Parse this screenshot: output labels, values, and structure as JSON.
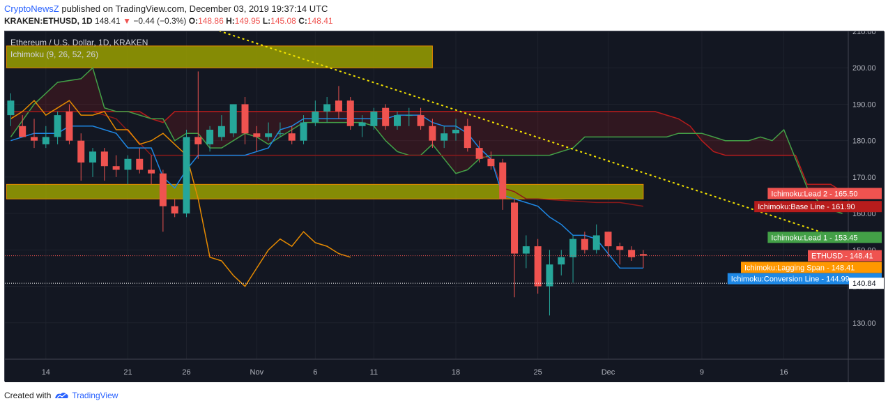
{
  "header": {
    "brand": "CryptoNewsZ",
    "rest": " published on TradingView.com, December 03, 2019 19:37:14 UTC"
  },
  "ticker": {
    "symbol": "KRAKEN:ETHUSD, 1D",
    "price": "148.41",
    "arrow": "▼",
    "change": "−0.44 (−0.3%)",
    "o_label": "O:",
    "o": "148.86",
    "h_label": "H:",
    "h": "149.95",
    "l_label": "L:",
    "l": "145.08",
    "c_label": "C:",
    "c": "148.41"
  },
  "chart_title": "Ethereum / U.S. Dollar, 1D, KRAKEN",
  "indicator_label": "Ichimoku (9, 26, 52, 26)",
  "footer": {
    "created": "Created with",
    "brand": "TradingView"
  },
  "colors": {
    "bg": "#131722",
    "up": "#26a69a",
    "down": "#ef5350",
    "lead1": "#43a047",
    "lead2": "#b71c1c",
    "base": "#8b1a1a",
    "conversion": "#1e88e5",
    "lagging": "#e68a00",
    "trend": "#f5e400",
    "zone": "#9aa000"
  },
  "chart_data": {
    "type": "candlestick",
    "title": "Ethereum / U.S. Dollar, 1D, KRAKEN",
    "ylim": [
      120,
      210
    ],
    "y_ticks": [
      130,
      140,
      150,
      160,
      170,
      180,
      190,
      200,
      210
    ],
    "y_tick_labels": [
      "130.00",
      "140.00",
      "150.00",
      "160.00",
      "170.00",
      "180.00",
      "190.00",
      "200.00",
      "210.00"
    ],
    "x_ticks": [
      "14",
      "21",
      "26",
      "Nov",
      "6",
      "11",
      "18",
      "25",
      "Dec",
      "9",
      "16"
    ],
    "x_tick_days": [
      3,
      10,
      15,
      21,
      26,
      31,
      38,
      45,
      51,
      59,
      66
    ],
    "x_range": [
      -0.5,
      71.5
    ],
    "candles": [
      {
        "d": 0,
        "o": 187,
        "h": 193,
        "l": 184,
        "c": 191
      },
      {
        "d": 1,
        "o": 184,
        "h": 187,
        "l": 181,
        "c": 181
      },
      {
        "d": 2,
        "o": 181,
        "h": 186,
        "l": 178,
        "c": 180
      },
      {
        "d": 3,
        "o": 179,
        "h": 184,
        "l": 178,
        "c": 181
      },
      {
        "d": 4,
        "o": 181,
        "h": 188,
        "l": 179,
        "c": 187
      },
      {
        "d": 5,
        "o": 188,
        "h": 190,
        "l": 179,
        "c": 180
      },
      {
        "d": 6,
        "o": 180,
        "h": 182,
        "l": 169,
        "c": 174
      },
      {
        "d": 7,
        "o": 174,
        "h": 178,
        "l": 170,
        "c": 177
      },
      {
        "d": 8,
        "o": 177,
        "h": 178,
        "l": 169,
        "c": 173
      },
      {
        "d": 9,
        "o": 173,
        "h": 176,
        "l": 170,
        "c": 172
      },
      {
        "d": 10,
        "o": 172,
        "h": 176,
        "l": 168,
        "c": 175
      },
      {
        "d": 11,
        "o": 175,
        "h": 178,
        "l": 171,
        "c": 172
      },
      {
        "d": 12,
        "o": 172,
        "h": 176,
        "l": 168,
        "c": 171
      },
      {
        "d": 13,
        "o": 171,
        "h": 172,
        "l": 155,
        "c": 162
      },
      {
        "d": 14,
        "o": 162,
        "h": 164,
        "l": 159,
        "c": 160
      },
      {
        "d": 15,
        "o": 160,
        "h": 183,
        "l": 159,
        "c": 181
      },
      {
        "d": 16,
        "o": 181,
        "h": 199,
        "l": 175,
        "c": 179
      },
      {
        "d": 17,
        "o": 179,
        "h": 184,
        "l": 177,
        "c": 183
      },
      {
        "d": 18,
        "o": 181,
        "h": 187,
        "l": 180,
        "c": 184
      },
      {
        "d": 19,
        "o": 182,
        "h": 190,
        "l": 181,
        "c": 190
      },
      {
        "d": 20,
        "o": 190,
        "h": 192,
        "l": 179,
        "c": 182
      },
      {
        "d": 21,
        "o": 182,
        "h": 184,
        "l": 177,
        "c": 181
      },
      {
        "d": 22,
        "o": 181,
        "h": 185,
        "l": 180,
        "c": 182
      },
      {
        "d": 23,
        "o": 182,
        "h": 185,
        "l": 181,
        "c": 182
      },
      {
        "d": 24,
        "o": 182,
        "h": 184,
        "l": 179,
        "c": 180
      },
      {
        "d": 25,
        "o": 180,
        "h": 187,
        "l": 179,
        "c": 185
      },
      {
        "d": 26,
        "o": 185,
        "h": 191,
        "l": 184,
        "c": 188
      },
      {
        "d": 27,
        "o": 188,
        "h": 192,
        "l": 185,
        "c": 190
      },
      {
        "d": 28,
        "o": 191,
        "h": 195,
        "l": 186,
        "c": 188
      },
      {
        "d": 29,
        "o": 191,
        "h": 192,
        "l": 183,
        "c": 184
      },
      {
        "d": 30,
        "o": 184,
        "h": 187,
        "l": 181,
        "c": 185
      },
      {
        "d": 31,
        "o": 184,
        "h": 189,
        "l": 183,
        "c": 188
      },
      {
        "d": 32,
        "o": 189,
        "h": 190,
        "l": 183,
        "c": 184
      },
      {
        "d": 33,
        "o": 184,
        "h": 188,
        "l": 183,
        "c": 187
      },
      {
        "d": 34,
        "o": 187,
        "h": 189,
        "l": 184,
        "c": 187
      },
      {
        "d": 35,
        "o": 187,
        "h": 189,
        "l": 183,
        "c": 184
      },
      {
        "d": 36,
        "o": 184,
        "h": 186,
        "l": 178,
        "c": 180
      },
      {
        "d": 37,
        "o": 180,
        "h": 184,
        "l": 178,
        "c": 182
      },
      {
        "d": 38,
        "o": 182,
        "h": 186,
        "l": 180,
        "c": 183
      },
      {
        "d": 39,
        "o": 184,
        "h": 186,
        "l": 177,
        "c": 178
      },
      {
        "d": 40,
        "o": 178,
        "h": 180,
        "l": 174,
        "c": 175
      },
      {
        "d": 41,
        "o": 175,
        "h": 177,
        "l": 172,
        "c": 173
      },
      {
        "d": 42,
        "o": 174,
        "h": 175,
        "l": 161,
        "c": 164
      },
      {
        "d": 43,
        "o": 163,
        "h": 164,
        "l": 137,
        "c": 149
      },
      {
        "d": 44,
        "o": 149,
        "h": 154,
        "l": 145,
        "c": 151
      },
      {
        "d": 45,
        "o": 151,
        "h": 153,
        "l": 138,
        "c": 140
      },
      {
        "d": 46,
        "o": 140,
        "h": 150,
        "l": 132,
        "c": 146
      },
      {
        "d": 47,
        "o": 146,
        "h": 150,
        "l": 143,
        "c": 148
      },
      {
        "d": 48,
        "o": 148,
        "h": 154,
        "l": 141,
        "c": 153
      },
      {
        "d": 49,
        "o": 153,
        "h": 155,
        "l": 149,
        "c": 150
      },
      {
        "d": 50,
        "o": 150,
        "h": 157,
        "l": 149,
        "c": 154
      },
      {
        "d": 51,
        "o": 155,
        "h": 155,
        "l": 148,
        "c": 151
      },
      {
        "d": 52,
        "o": 151,
        "h": 152,
        "l": 146,
        "c": 150
      },
      {
        "d": 53,
        "o": 150,
        "h": 151,
        "l": 147,
        "c": 148
      },
      {
        "d": 54,
        "o": 148.86,
        "h": 149.95,
        "l": 145.08,
        "c": 148.41
      }
    ],
    "conversion_line": [
      [
        0,
        180
      ],
      [
        2,
        182
      ],
      [
        4,
        182
      ],
      [
        5,
        184
      ],
      [
        7,
        184
      ],
      [
        9,
        182
      ],
      [
        10,
        178
      ],
      [
        12,
        178
      ],
      [
        13,
        170
      ],
      [
        14,
        167
      ],
      [
        15,
        172
      ],
      [
        16,
        176
      ],
      [
        20,
        176
      ],
      [
        21,
        177
      ],
      [
        22,
        178
      ],
      [
        23,
        183
      ],
      [
        24,
        184
      ],
      [
        25,
        186
      ],
      [
        29,
        186
      ],
      [
        30,
        186
      ],
      [
        32,
        186
      ],
      [
        33,
        187
      ],
      [
        35,
        187
      ],
      [
        36,
        185
      ],
      [
        37,
        184
      ],
      [
        38,
        184
      ],
      [
        39,
        182
      ],
      [
        40,
        178
      ],
      [
        41,
        175
      ],
      [
        42,
        165
      ],
      [
        43,
        164
      ],
      [
        44,
        163
      ],
      [
        45,
        162
      ],
      [
        46,
        159
      ],
      [
        47,
        157
      ],
      [
        48,
        154
      ],
      [
        49,
        154
      ],
      [
        50,
        153
      ],
      [
        51,
        149
      ],
      [
        52,
        145
      ],
      [
        53,
        145
      ],
      [
        54,
        145
      ]
    ],
    "base_line": [
      [
        0,
        188
      ],
      [
        2,
        188
      ],
      [
        3,
        188
      ],
      [
        5,
        188
      ],
      [
        7,
        188
      ],
      [
        9,
        186
      ],
      [
        12,
        176
      ],
      [
        14,
        176
      ],
      [
        20,
        176
      ],
      [
        21,
        176
      ],
      [
        28,
        176
      ],
      [
        29,
        176
      ],
      [
        30,
        176
      ],
      [
        34,
        176
      ],
      [
        35,
        176
      ],
      [
        36,
        176
      ],
      [
        38,
        176
      ],
      [
        39,
        176
      ],
      [
        40,
        176
      ],
      [
        41,
        175
      ],
      [
        42,
        167
      ],
      [
        43,
        166
      ],
      [
        44,
        164
      ],
      [
        45,
        164
      ],
      [
        50,
        163
      ],
      [
        52,
        163
      ],
      [
        54,
        162
      ]
    ],
    "lead1": [
      [
        0,
        181
      ],
      [
        2,
        190
      ],
      [
        4,
        196
      ],
      [
        6,
        197
      ],
      [
        7,
        200
      ],
      [
        8,
        189
      ],
      [
        9,
        188
      ],
      [
        10,
        188
      ],
      [
        11,
        187
      ],
      [
        12,
        186
      ],
      [
        13,
        186
      ],
      [
        14,
        180
      ],
      [
        15,
        182
      ],
      [
        16,
        182
      ],
      [
        17,
        178
      ],
      [
        18,
        178
      ],
      [
        19,
        180
      ],
      [
        20,
        182
      ],
      [
        21,
        181
      ],
      [
        22,
        179
      ],
      [
        23,
        181
      ],
      [
        24,
        183
      ],
      [
        25,
        185
      ],
      [
        26,
        185
      ],
      [
        27,
        185
      ],
      [
        28,
        185
      ],
      [
        29,
        185
      ],
      [
        30,
        185
      ],
      [
        31,
        184
      ],
      [
        32,
        180
      ],
      [
        33,
        177
      ],
      [
        34,
        176
      ],
      [
        35,
        176
      ],
      [
        36,
        179
      ],
      [
        37,
        175
      ],
      [
        38,
        171
      ],
      [
        39,
        172
      ],
      [
        40,
        175
      ],
      [
        41,
        176
      ],
      [
        42,
        176
      ],
      [
        43,
        176
      ],
      [
        44,
        176
      ],
      [
        45,
        176
      ],
      [
        46,
        176
      ],
      [
        47,
        177
      ],
      [
        48,
        178
      ],
      [
        49,
        181
      ],
      [
        50,
        181
      ],
      [
        51,
        181
      ],
      [
        52,
        181
      ],
      [
        53,
        181
      ],
      [
        54,
        181
      ],
      [
        55,
        181
      ],
      [
        56,
        181
      ],
      [
        57,
        182
      ],
      [
        58,
        182
      ],
      [
        59,
        182
      ],
      [
        60,
        181
      ],
      [
        61,
        180
      ],
      [
        62,
        180
      ],
      [
        63,
        180
      ],
      [
        64,
        181
      ],
      [
        65,
        180
      ],
      [
        66,
        183
      ],
      [
        67,
        175
      ],
      [
        68,
        167
      ],
      [
        69,
        163
      ],
      [
        70,
        161
      ],
      [
        71,
        160
      ]
    ],
    "lead2": [
      [
        0,
        188
      ],
      [
        2,
        188
      ],
      [
        4,
        188
      ],
      [
        6,
        188
      ],
      [
        8,
        188
      ],
      [
        9,
        188
      ],
      [
        10,
        188
      ],
      [
        11,
        188
      ],
      [
        12,
        186
      ],
      [
        13,
        185
      ],
      [
        14,
        188
      ],
      [
        15,
        188
      ],
      [
        20,
        188
      ],
      [
        25,
        188
      ],
      [
        30,
        188
      ],
      [
        35,
        188
      ],
      [
        40,
        188
      ],
      [
        45,
        188
      ],
      [
        50,
        188
      ],
      [
        52,
        188
      ],
      [
        54,
        188
      ],
      [
        55,
        188
      ],
      [
        56,
        187
      ],
      [
        57,
        186
      ],
      [
        58,
        184
      ],
      [
        59,
        180
      ],
      [
        60,
        177
      ],
      [
        61,
        176
      ],
      [
        62,
        176
      ],
      [
        63,
        176
      ],
      [
        64,
        176
      ],
      [
        65,
        176
      ],
      [
        66,
        176
      ],
      [
        67,
        176
      ],
      [
        68,
        168
      ],
      [
        69,
        168
      ],
      [
        70,
        168
      ],
      [
        71,
        166
      ]
    ],
    "lagging_span": [
      [
        0,
        186
      ],
      [
        1,
        188
      ],
      [
        2,
        191
      ],
      [
        3,
        187
      ],
      [
        4,
        189
      ],
      [
        5,
        191
      ],
      [
        6,
        187
      ],
      [
        7,
        187
      ],
      [
        8,
        188
      ],
      [
        9,
        183
      ],
      [
        10,
        183
      ],
      [
        11,
        179
      ],
      [
        12,
        180
      ],
      [
        13,
        182
      ],
      [
        14,
        179
      ],
      [
        15,
        176
      ],
      [
        16,
        164
      ],
      [
        17,
        148
      ],
      [
        18,
        147
      ],
      [
        19,
        143
      ],
      [
        20,
        140
      ],
      [
        21,
        145
      ],
      [
        22,
        150
      ],
      [
        23,
        153
      ],
      [
        24,
        151
      ],
      [
        25,
        155
      ],
      [
        26,
        152
      ],
      [
        27,
        151
      ],
      [
        28,
        149
      ],
      [
        29,
        148
      ]
    ],
    "trendline": [
      [
        17,
        211
      ],
      [
        70,
        154
      ]
    ],
    "zones": [
      {
        "d0": 0,
        "d1": 36,
        "y0": 200,
        "y1": 206
      },
      {
        "d0": 0,
        "d1": 54,
        "y0": 164,
        "y1": 168
      }
    ],
    "price_labels": [
      {
        "name": "Ichimoku:Lead 2",
        "value": "165.50",
        "y": 165.5,
        "color": "#ef5350"
      },
      {
        "name": "Ichimoku:Base Line",
        "value": "161.90",
        "y": 161.9,
        "color": "#b71c1c"
      },
      {
        "name": "Ichimoku:Lead 1",
        "value": "153.45",
        "y": 153.45,
        "color": "#43a047"
      },
      {
        "name": "ETHUSD",
        "value": "148.41",
        "y": 148.41,
        "color": "#ef5350"
      },
      {
        "name": "Ichimoku:Lagging Span",
        "value": "148.41",
        "y": 145.2,
        "color": "#ff9800"
      },
      {
        "name": "Ichimoku:Conversion Line",
        "value": "144.99",
        "y": 142.1,
        "color": "#1e88e5"
      }
    ],
    "crosshair": {
      "value": "140.84",
      "y": 140.84
    }
  }
}
